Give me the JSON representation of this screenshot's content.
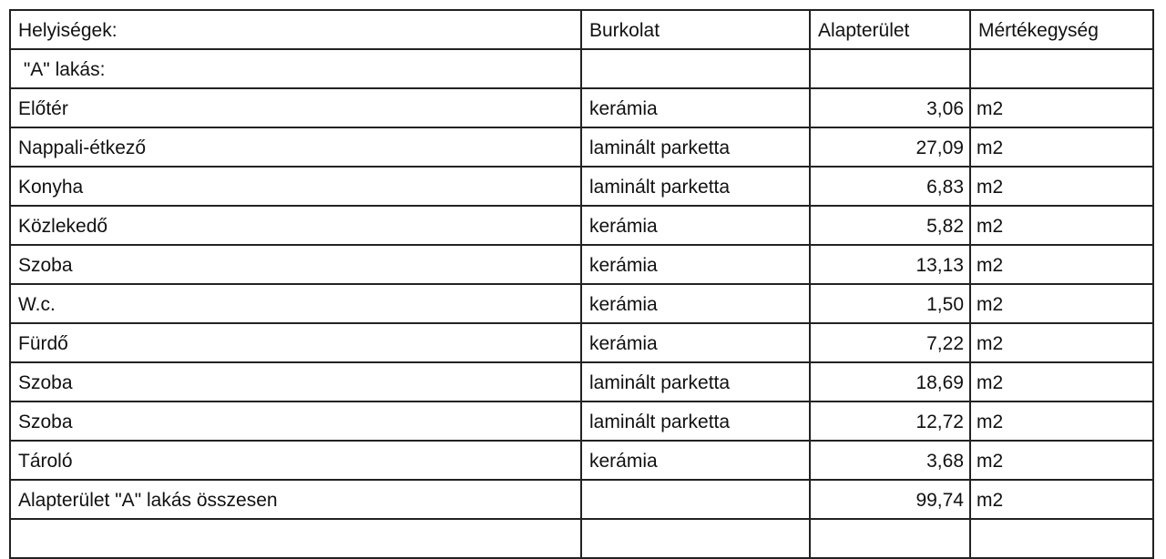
{
  "table": {
    "headers": [
      "Helyiségek:",
      "Burkolat",
      "Alapterület",
      "Mértékegység"
    ],
    "section": " \"A\" lakás:",
    "rows": [
      [
        "Előtér",
        "kerámia",
        "3,06",
        "m2"
      ],
      [
        "Nappali-étkező",
        "laminált parketta",
        "27,09",
        "m2"
      ],
      [
        "Konyha",
        "laminált parketta",
        "6,83",
        "m2"
      ],
      [
        "Közlekedő",
        "kerámia",
        "5,82",
        "m2"
      ],
      [
        "Szoba",
        "kerámia",
        "13,13",
        "m2"
      ],
      [
        "W.c.",
        "kerámia",
        "1,50",
        "m2"
      ],
      [
        "Fürdő",
        "kerámia",
        "7,22",
        "m2"
      ],
      [
        "Szoba",
        "laminált parketta",
        "18,69",
        "m2"
      ],
      [
        "Szoba",
        "laminált parketta",
        "12,72",
        "m2"
      ],
      [
        "Tároló",
        "kerámia",
        "3,68",
        "m2"
      ]
    ],
    "total": [
      "Alapterület \"A\" lakás összesen",
      "",
      "99,74",
      "m2"
    ]
  }
}
